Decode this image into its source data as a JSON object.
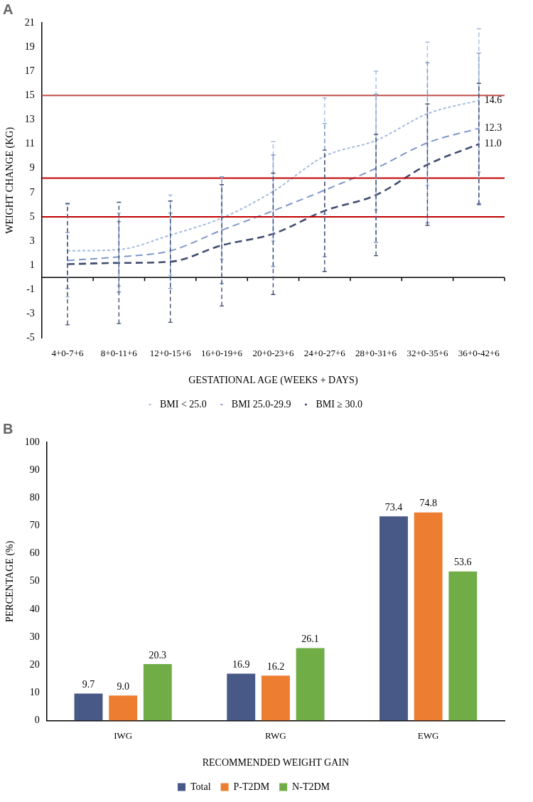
{
  "chart_data": [
    {
      "type": "line",
      "title": "A",
      "xlabel": "GESTATIONAL AGE (WEEKS + DAYS)",
      "ylabel": "WEIGHT CHANGE (KG)",
      "categories": [
        "4+0-7+6",
        "8+0-11+6",
        "12+0-15+6",
        "16+0-19+6",
        "20+0-23+6",
        "24+0-27+6",
        "28+0-31+6",
        "32+0-35+6",
        "36+0-42+6"
      ],
      "series": [
        {
          "name": "BMI < 25.0",
          "color": "#a3bbde",
          "line_style": "dotted",
          "values": [
            2.2,
            2.3,
            3.5,
            4.9,
            7.1,
            10.0,
            11.3,
            13.5,
            14.6
          ],
          "errors": [
            3.8,
            3.0,
            3.3,
            3.4,
            4.1,
            4.8,
            5.7,
            5.9,
            5.9
          ],
          "value_labels": [
            null,
            null,
            null,
            null,
            null,
            null,
            null,
            null,
            "14.6"
          ]
        },
        {
          "name": "BMI 25.0-29.9",
          "color": "#7e97c9",
          "line_style": "dashed",
          "values": [
            1.4,
            1.7,
            2.2,
            3.9,
            5.5,
            7.2,
            9.0,
            11.1,
            12.3
          ],
          "errors": [
            2.3,
            2.9,
            3.1,
            4.4,
            4.6,
            5.5,
            6.1,
            6.6,
            6.2
          ],
          "value_labels": [
            null,
            null,
            null,
            null,
            null,
            null,
            null,
            null,
            "12.3"
          ]
        },
        {
          "name": "BMI ≥ 30.0",
          "color": "#414d70",
          "line_style": "dashed",
          "values": [
            1.1,
            1.2,
            1.3,
            2.65,
            3.6,
            5.5,
            6.8,
            9.3,
            11.0
          ],
          "errors": [
            5.0,
            5.0,
            5.0,
            5.0,
            5.0,
            5.0,
            5.0,
            5.0,
            5.0
          ],
          "value_labels": [
            null,
            null,
            null,
            null,
            null,
            null,
            null,
            null,
            "11.0"
          ]
        }
      ],
      "ylim": [
        -5,
        21
      ],
      "yticks": [
        -5,
        -3,
        -1,
        1,
        3,
        5,
        7,
        9,
        11,
        13,
        15,
        17,
        19,
        21
      ],
      "grid": false,
      "legend": "bottom",
      "marker": "none",
      "ref_lines": [
        {
          "axis": "y",
          "value": 15,
          "color": "#c0504d"
        },
        {
          "axis": "y",
          "value": 8.2,
          "color": "#c00000"
        },
        {
          "axis": "y",
          "value": 5,
          "color": "#c00000"
        }
      ]
    },
    {
      "type": "bar",
      "title": "B",
      "xlabel": "RECOMMENDED WEIGHT GAIN",
      "ylabel": "PERCENTAGE (%)",
      "categories": [
        "IWG",
        "RWG",
        "EWG"
      ],
      "series": [
        {
          "name": "Total",
          "color": "#485887",
          "values": [
            9.7,
            16.9,
            73.4
          ],
          "value_labels": [
            "9.7",
            "16.9",
            "73.4"
          ]
        },
        {
          "name": "P-T2DM",
          "color": "#ed7d31",
          "values": [
            9.0,
            16.2,
            74.8
          ],
          "value_labels": [
            "9.0",
            "16.2",
            "74.8"
          ]
        },
        {
          "name": "N-T2DM",
          "color": "#70ad47",
          "values": [
            20.3,
            26.1,
            53.6
          ],
          "value_labels": [
            "20.3",
            "26.1",
            "53.6"
          ]
        }
      ],
      "ylim": [
        0,
        100
      ],
      "yticks": [
        0,
        10,
        20,
        30,
        40,
        50,
        60,
        70,
        80,
        90,
        100
      ],
      "grid": false,
      "legend": "bottom"
    }
  ]
}
